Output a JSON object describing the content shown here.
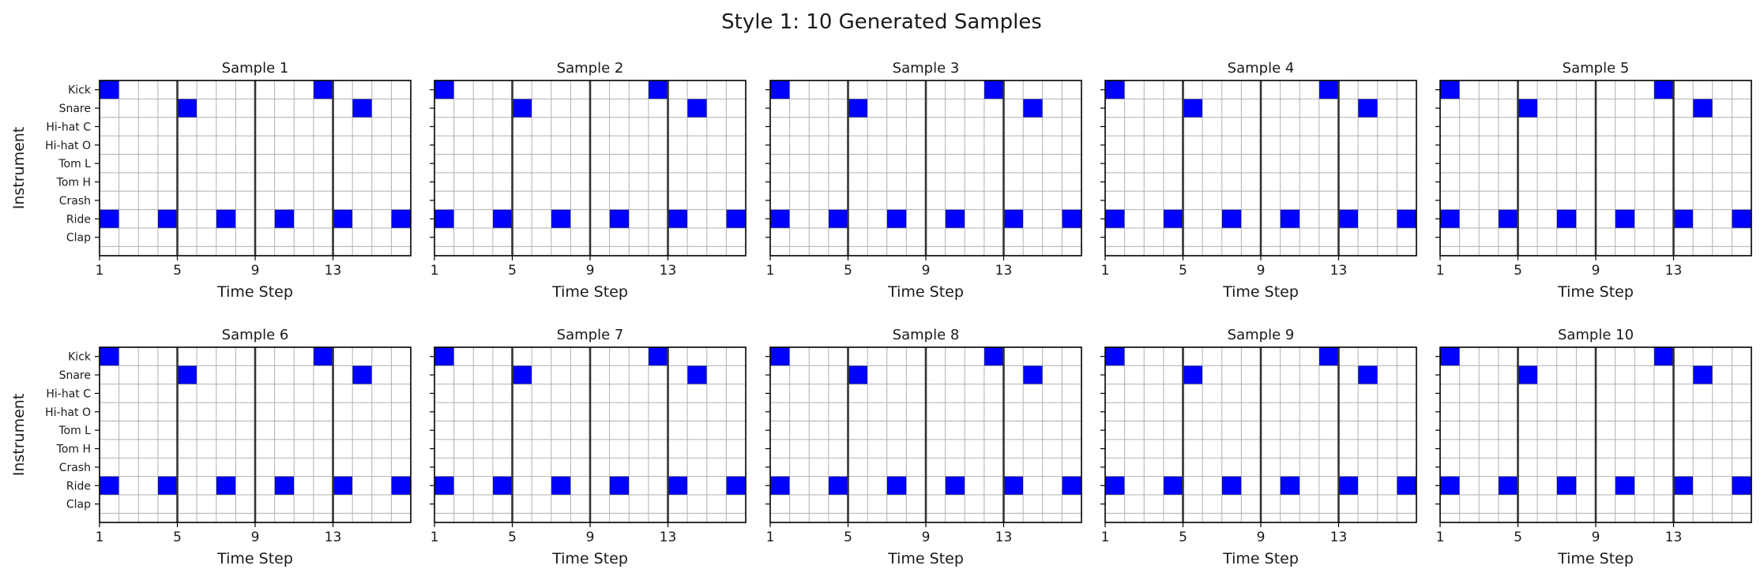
{
  "figure": {
    "title": "Style 1: 10 Generated Samples"
  },
  "colors": {
    "active": "#0000ff",
    "grid": "#b0b0b0",
    "beat_line": "#333333",
    "frame": "#000000",
    "text": "#1a1a1a"
  },
  "chart_data": {
    "type": "heatmap",
    "grid": true,
    "xlabel": "Time Step",
    "ylabel": "Instrument",
    "x_ticks": [
      1,
      5,
      9,
      13
    ],
    "xlim": [
      1,
      17
    ],
    "steps": 16,
    "beat_lines_at": [
      5,
      9,
      13
    ],
    "instruments": [
      "Kick",
      "Snare",
      "Hi-hat C",
      "Hi-hat O",
      "Tom L",
      "Tom H",
      "Crash",
      "Ride",
      "Clap"
    ],
    "samples": [
      {
        "title": "Sample 1",
        "hits": [
          [
            1,
            1
          ],
          [
            12,
            1
          ],
          [
            5,
            2
          ],
          [
            14,
            2
          ],
          [
            1,
            8
          ],
          [
            4,
            8
          ],
          [
            7,
            8
          ],
          [
            10,
            8
          ],
          [
            13,
            8
          ],
          [
            16,
            8
          ]
        ]
      },
      {
        "title": "Sample 2",
        "hits": [
          [
            1,
            1
          ],
          [
            12,
            1
          ],
          [
            5,
            2
          ],
          [
            14,
            2
          ],
          [
            1,
            8
          ],
          [
            4,
            8
          ],
          [
            7,
            8
          ],
          [
            10,
            8
          ],
          [
            13,
            8
          ],
          [
            16,
            8
          ]
        ]
      },
      {
        "title": "Sample 3",
        "hits": [
          [
            1,
            1
          ],
          [
            12,
            1
          ],
          [
            5,
            2
          ],
          [
            14,
            2
          ],
          [
            1,
            8
          ],
          [
            4,
            8
          ],
          [
            7,
            8
          ],
          [
            10,
            8
          ],
          [
            13,
            8
          ],
          [
            16,
            8
          ]
        ]
      },
      {
        "title": "Sample 4",
        "hits": [
          [
            1,
            1
          ],
          [
            12,
            1
          ],
          [
            5,
            2
          ],
          [
            14,
            2
          ],
          [
            1,
            8
          ],
          [
            4,
            8
          ],
          [
            7,
            8
          ],
          [
            10,
            8
          ],
          [
            13,
            8
          ],
          [
            16,
            8
          ]
        ]
      },
      {
        "title": "Sample 5",
        "hits": [
          [
            1,
            1
          ],
          [
            12,
            1
          ],
          [
            5,
            2
          ],
          [
            14,
            2
          ],
          [
            1,
            8
          ],
          [
            4,
            8
          ],
          [
            7,
            8
          ],
          [
            10,
            8
          ],
          [
            13,
            8
          ],
          [
            16,
            8
          ]
        ]
      },
      {
        "title": "Sample 6",
        "hits": [
          [
            1,
            1
          ],
          [
            12,
            1
          ],
          [
            5,
            2
          ],
          [
            14,
            2
          ],
          [
            1,
            8
          ],
          [
            4,
            8
          ],
          [
            7,
            8
          ],
          [
            10,
            8
          ],
          [
            13,
            8
          ],
          [
            16,
            8
          ]
        ]
      },
      {
        "title": "Sample 7",
        "hits": [
          [
            1,
            1
          ],
          [
            12,
            1
          ],
          [
            5,
            2
          ],
          [
            14,
            2
          ],
          [
            1,
            8
          ],
          [
            4,
            8
          ],
          [
            7,
            8
          ],
          [
            10,
            8
          ],
          [
            13,
            8
          ],
          [
            16,
            8
          ]
        ]
      },
      {
        "title": "Sample 8",
        "hits": [
          [
            1,
            1
          ],
          [
            12,
            1
          ],
          [
            5,
            2
          ],
          [
            14,
            2
          ],
          [
            1,
            8
          ],
          [
            4,
            8
          ],
          [
            7,
            8
          ],
          [
            10,
            8
          ],
          [
            13,
            8
          ],
          [
            16,
            8
          ]
        ]
      },
      {
        "title": "Sample 9",
        "hits": [
          [
            1,
            1
          ],
          [
            12,
            1
          ],
          [
            5,
            2
          ],
          [
            14,
            2
          ],
          [
            1,
            8
          ],
          [
            4,
            8
          ],
          [
            7,
            8
          ],
          [
            10,
            8
          ],
          [
            13,
            8
          ],
          [
            16,
            8
          ]
        ]
      },
      {
        "title": "Sample 10",
        "hits": [
          [
            1,
            1
          ],
          [
            12,
            1
          ],
          [
            5,
            2
          ],
          [
            14,
            2
          ],
          [
            1,
            8
          ],
          [
            4,
            8
          ],
          [
            7,
            8
          ],
          [
            10,
            8
          ],
          [
            13,
            8
          ],
          [
            16,
            8
          ]
        ]
      }
    ]
  }
}
